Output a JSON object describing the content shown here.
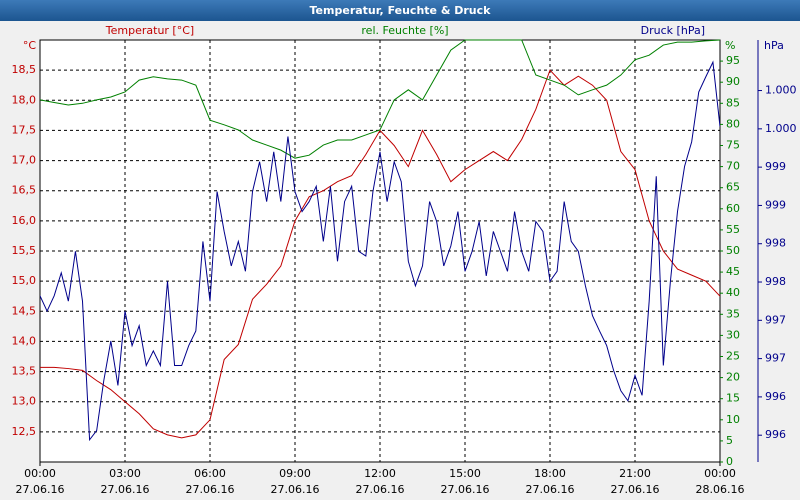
{
  "chart_data": {
    "type": "line",
    "title": "Temperatur, Feuchte & Druck",
    "y_unit": "°C",
    "y2_unit": "%",
    "y3_unit": "hPa",
    "grid": true,
    "xlim": [
      0,
      24
    ],
    "xticks": [
      {
        "value": 0,
        "label": "00:00",
        "sublabel": "27.06.16"
      },
      {
        "value": 3,
        "label": "03:00",
        "sublabel": "27.06.16"
      },
      {
        "value": 6,
        "label": "06:00",
        "sublabel": "27.06.16"
      },
      {
        "value": 9,
        "label": "09:00",
        "sublabel": "27.06.16"
      },
      {
        "value": 12,
        "label": "12:00",
        "sublabel": "27.06.16"
      },
      {
        "value": 15,
        "label": "15:00",
        "sublabel": "27.06.16"
      },
      {
        "value": 18,
        "label": "18:00",
        "sublabel": "27.06.16"
      },
      {
        "value": 21,
        "label": "21:00",
        "sublabel": "27.06.16"
      },
      {
        "value": 24,
        "label": "00:00",
        "sublabel": "28.06.16"
      }
    ],
    "ylim": [
      12,
      19
    ],
    "yticks": [
      {
        "value": 12.5,
        "label": "12,5"
      },
      {
        "value": 13,
        "label": "13,0"
      },
      {
        "value": 13.5,
        "label": "13,5"
      },
      {
        "value": 14,
        "label": "14,0"
      },
      {
        "value": 14.5,
        "label": "14,5"
      },
      {
        "value": 15,
        "label": "15,0"
      },
      {
        "value": 15.5,
        "label": "15,5"
      },
      {
        "value": 16,
        "label": "16,0"
      },
      {
        "value": 16.5,
        "label": "16,5"
      },
      {
        "value": 17,
        "label": "17,0"
      },
      {
        "value": 17.5,
        "label": "17,5"
      },
      {
        "value": 18,
        "label": "18,0"
      },
      {
        "value": 18.5,
        "label": "18,5"
      }
    ],
    "y2lim": [
      0,
      100
    ],
    "y2ticks": [
      0,
      5,
      10,
      15,
      20,
      25,
      30,
      35,
      40,
      45,
      50,
      55,
      60,
      65,
      70,
      75,
      80,
      85,
      90,
      95
    ],
    "y3lim": [
      995.15,
      1000.66
    ],
    "y3ticks": [
      {
        "value": 995.5,
        "label": "996"
      },
      {
        "value": 996,
        "label": "996"
      },
      {
        "value": 996.5,
        "label": "997"
      },
      {
        "value": 997,
        "label": "997"
      },
      {
        "value": 997.5,
        "label": "998"
      },
      {
        "value": 998,
        "label": "998"
      },
      {
        "value": 998.5,
        "label": "999"
      },
      {
        "value": 999,
        "label": "999"
      },
      {
        "value": 999.5,
        "label": "1.000"
      },
      {
        "value": 1000,
        "label": "1.000"
      }
    ],
    "series": [
      {
        "name": "Temperatur [°C]",
        "color": "#c00000",
        "axis": "y",
        "x": [
          0,
          0.5,
          1,
          1.5,
          2,
          2.5,
          3,
          3.5,
          4,
          4.5,
          5,
          5.5,
          6,
          6.5,
          7,
          7.5,
          8,
          8.5,
          9,
          9.5,
          10,
          10.5,
          11,
          11.5,
          12,
          12.5,
          13,
          13.5,
          14,
          14.5,
          15,
          15.5,
          16,
          16.5,
          17,
          17.5,
          18,
          18.5,
          19,
          19.5,
          20,
          20.5,
          21,
          21.5,
          22,
          22.5,
          23,
          23.5,
          24
        ],
        "values": [
          13.57,
          13.57,
          13.55,
          13.52,
          13.35,
          13.2,
          13.0,
          12.8,
          12.55,
          12.45,
          12.4,
          12.45,
          12.7,
          13.7,
          13.95,
          14.7,
          14.95,
          15.25,
          16.0,
          16.4,
          16.5,
          16.65,
          16.75,
          17.1,
          17.5,
          17.25,
          16.9,
          17.5,
          17.1,
          16.65,
          16.85,
          17.0,
          17.15,
          17.0,
          17.35,
          17.85,
          18.5,
          18.25,
          18.4,
          18.25,
          18.0,
          17.15,
          16.85,
          16.0,
          15.5,
          15.2,
          15.1,
          15.0,
          14.75
        ]
      },
      {
        "name": "rel. Feuchte [%]",
        "color": "#008000",
        "axis": "y2",
        "x": [
          0,
          0.5,
          1,
          1.5,
          2,
          2.5,
          3,
          3.5,
          4,
          4.5,
          5,
          5.5,
          6,
          6.5,
          7,
          7.5,
          8,
          8.5,
          9,
          9.5,
          10,
          10.5,
          11,
          11.5,
          12,
          12.5,
          13,
          13.5,
          14,
          14.5,
          15,
          15.5,
          16,
          16.5,
          17,
          17.5,
          18,
          18.5,
          19,
          19.5,
          20,
          20.5,
          21,
          21.5,
          22,
          22.5,
          23,
          23.5,
          24
        ],
        "values": [
          85.8,
          85.2,
          84.6,
          85.0,
          85.8,
          86.5,
          87.7,
          90.5,
          91.3,
          90.8,
          90.5,
          89.3,
          81,
          79.9,
          78.7,
          76.3,
          75.1,
          73.9,
          72,
          72.7,
          75.1,
          76.3,
          76.3,
          77.5,
          78.7,
          85.8,
          88.2,
          85.8,
          91.7,
          97.6,
          100,
          100,
          100,
          100,
          100,
          91.7,
          90.5,
          89.3,
          87,
          88.2,
          89.3,
          91.7,
          95.3,
          96.4,
          98.8,
          99.5,
          99.5,
          99.8,
          100
        ]
      },
      {
        "name": "Druck [hPa]",
        "color": "#00008b",
        "axis": "y3",
        "x": [
          0,
          0.25,
          0.5,
          0.75,
          1,
          1.25,
          1.5,
          1.75,
          2,
          2.25,
          2.5,
          2.75,
          3,
          3.25,
          3.5,
          3.75,
          4,
          4.25,
          4.5,
          4.75,
          5,
          5.25,
          5.5,
          5.75,
          6,
          6.25,
          6.5,
          6.75,
          7,
          7.25,
          7.5,
          7.75,
          8,
          8.25,
          8.5,
          8.75,
          9,
          9.25,
          9.5,
          9.75,
          10,
          10.25,
          10.5,
          10.75,
          11,
          11.25,
          11.5,
          11.75,
          12,
          12.25,
          12.5,
          12.75,
          13,
          13.25,
          13.5,
          13.75,
          14,
          14.25,
          14.5,
          14.75,
          15,
          15.25,
          15.5,
          15.75,
          16,
          16.25,
          16.5,
          16.75,
          17,
          17.25,
          17.5,
          17.75,
          18,
          18.25,
          18.5,
          18.75,
          19,
          19.25,
          19.5,
          19.75,
          20,
          20.25,
          20.5,
          20.75,
          21,
          21.25,
          21.5,
          21.75,
          22,
          22.25,
          22.5,
          22.75,
          23,
          23.25,
          23.5,
          23.75,
          24
        ],
        "values": [
          997.32,
          997.12,
          997.32,
          997.62,
          997.25,
          997.9,
          997.25,
          995.44,
          995.56,
          996.21,
          996.73,
          996.15,
          997.12,
          996.67,
          996.93,
          996.41,
          996.6,
          996.41,
          997.51,
          996.41,
          996.41,
          996.67,
          996.86,
          998.03,
          997.25,
          998.68,
          998.16,
          997.71,
          998.03,
          997.64,
          998.68,
          999.07,
          998.55,
          999.2,
          998.55,
          999.4,
          998.68,
          998.42,
          998.55,
          998.75,
          998.03,
          998.75,
          997.77,
          998.55,
          998.75,
          997.9,
          997.84,
          998.68,
          999.2,
          998.55,
          999.07,
          998.81,
          997.77,
          997.45,
          997.71,
          998.55,
          998.29,
          997.71,
          997.97,
          998.42,
          997.64,
          997.9,
          998.29,
          997.58,
          998.16,
          997.9,
          997.64,
          998.42,
          997.9,
          997.64,
          998.29,
          998.16,
          997.51,
          997.64,
          998.55,
          998.03,
          997.9,
          997.45,
          997.06,
          996.86,
          996.67,
          996.34,
          996.08,
          995.95,
          996.28,
          996.02,
          997.25,
          998.88,
          996.41,
          997.51,
          998.42,
          999.01,
          999.33,
          999.98,
          1000.18,
          1000.37,
          999.53
        ]
      }
    ]
  }
}
